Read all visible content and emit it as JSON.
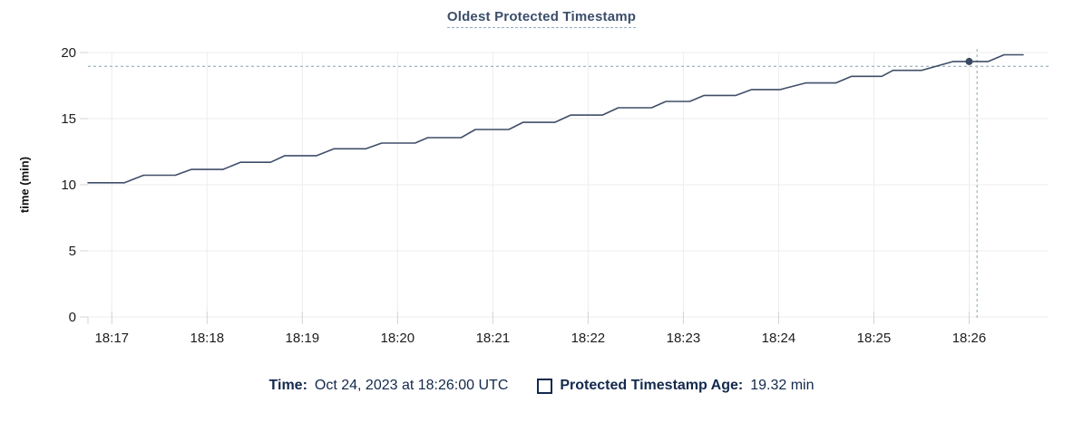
{
  "title": {
    "text": "Oldest Protected Timestamp"
  },
  "legend": {
    "time_label": "Time:",
    "time_value": "Oct 24, 2023 at 18:26:00 UTC",
    "series_swatch_icon": "checkbox-outline",
    "series_label": "Protected Timestamp Age:",
    "series_value": "19.32 min"
  },
  "colors": {
    "background": "#ffffff",
    "line": "#3f4e69",
    "point": "#3a4a63",
    "grid": "#ededed",
    "tick": "#d4d4d4",
    "axis_text": "#1c1c1c",
    "title_text": "#3c4e6b",
    "title_underline": "#93a9c4",
    "legend_text": "#13294d",
    "crosshair": "#a5bac4"
  },
  "chart_data": {
    "type": "line",
    "title": "Oldest Protected Timestamp",
    "xlabel": "",
    "ylabel": "time (min)",
    "ylim": [
      0,
      20
    ],
    "yticks": [
      0,
      5,
      10,
      15,
      20
    ],
    "xticks": [
      "18:17",
      "18:18",
      "18:19",
      "18:20",
      "18:21",
      "18:22",
      "18:23",
      "18:24",
      "18:25",
      "18:26"
    ],
    "x_domain": [
      "18:16:45",
      "18:26:50"
    ],
    "grid": true,
    "legend_position": "bottom",
    "series": [
      {
        "name": "Protected Timestamp Age",
        "unit": "min",
        "points": [
          [
            "18:16:45",
            10.15
          ],
          [
            "18:17:08",
            10.15
          ],
          [
            "18:17:20",
            10.72
          ],
          [
            "18:17:40",
            10.72
          ],
          [
            "18:17:50",
            11.16
          ],
          [
            "18:18:10",
            11.16
          ],
          [
            "18:18:21",
            11.7
          ],
          [
            "18:18:40",
            11.7
          ],
          [
            "18:18:49",
            12.2
          ],
          [
            "18:19:09",
            12.2
          ],
          [
            "18:19:20",
            12.72
          ],
          [
            "18:19:40",
            12.72
          ],
          [
            "18:19:50",
            13.15
          ],
          [
            "18:20:11",
            13.15
          ],
          [
            "18:20:19",
            13.56
          ],
          [
            "18:20:40",
            13.56
          ],
          [
            "18:20:49",
            14.18
          ],
          [
            "18:21:10",
            14.18
          ],
          [
            "18:21:19",
            14.72
          ],
          [
            "18:21:39",
            14.72
          ],
          [
            "18:21:49",
            15.27
          ],
          [
            "18:22:09",
            15.27
          ],
          [
            "18:22:19",
            15.82
          ],
          [
            "18:22:40",
            15.82
          ],
          [
            "18:22:49",
            16.3
          ],
          [
            "18:23:04",
            16.3
          ],
          [
            "18:23:13",
            16.75
          ],
          [
            "18:23:33",
            16.75
          ],
          [
            "18:23:43",
            17.2
          ],
          [
            "18:24:01",
            17.2
          ],
          [
            "18:24:17",
            17.7
          ],
          [
            "18:24:36",
            17.7
          ],
          [
            "18:24:46",
            18.2
          ],
          [
            "18:25:05",
            18.2
          ],
          [
            "18:25:12",
            18.65
          ],
          [
            "18:25:30",
            18.65
          ],
          [
            "18:25:50",
            19.32
          ],
          [
            "18:26:12",
            19.32
          ],
          [
            "18:26:22",
            19.83
          ],
          [
            "18:26:34",
            19.83
          ]
        ]
      }
    ],
    "hover": {
      "time": "18:26:00",
      "value": 19.32,
      "crosshair_time": "18:26:05",
      "crosshair_value": 18.95
    }
  }
}
